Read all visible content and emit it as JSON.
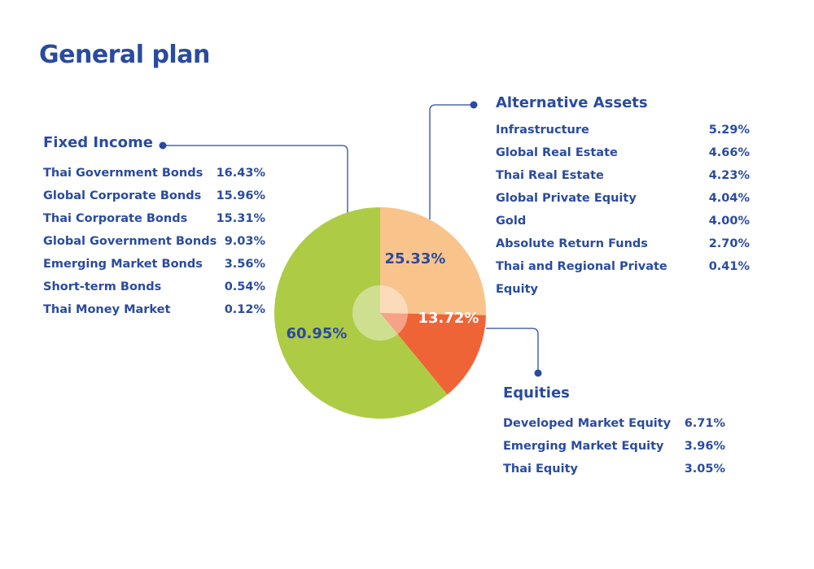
{
  "title": "General plan",
  "colors": {
    "text": "#2a4b9e",
    "fixed_income": "#aecb45",
    "alternative": "#f9c48c",
    "equities": "#ef6437",
    "center": "#ffffff"
  },
  "chart_data": {
    "type": "pie",
    "title": "General plan",
    "slices": [
      {
        "name": "Alternative Assets",
        "value": 25.33,
        "label": "25.33%",
        "color": "#f9c48c"
      },
      {
        "name": "Equities",
        "value": 13.72,
        "label": "13.72%",
        "color": "#ef6437"
      },
      {
        "name": "Fixed Income",
        "value": 60.95,
        "label": "60.95%",
        "color": "#aecb45"
      }
    ],
    "start": "top",
    "direction": "clockwise"
  },
  "groups": {
    "fixed": {
      "title": "Fixed Income",
      "items": [
        {
          "name": "Thai Government Bonds",
          "value": "16.43%"
        },
        {
          "name": "Global Corporate Bonds",
          "value": "15.96%"
        },
        {
          "name": "Thai Corporate Bonds",
          "value": "15.31%"
        },
        {
          "name": "Global Government Bonds",
          "value": "9.03%"
        },
        {
          "name": "Emerging Market Bonds",
          "value": "3.56%"
        },
        {
          "name": "Short-term Bonds",
          "value": "0.54%"
        },
        {
          "name": "Thai Money Market",
          "value": "0.12%"
        }
      ]
    },
    "alt": {
      "title": "Alternative Assets",
      "items": [
        {
          "name": "Infrastructure",
          "value": "5.29%"
        },
        {
          "name": "Global Real Estate",
          "value": "4.66%"
        },
        {
          "name": "Thai Real Estate",
          "value": "4.23%"
        },
        {
          "name": "Global Private Equity",
          "value": "4.04%"
        },
        {
          "name": "Gold",
          "value": "4.00%"
        },
        {
          "name": "Absolute Return Funds",
          "value": "2.70%"
        },
        {
          "name": "Thai and Regional Private Equity",
          "value": "0.41%"
        }
      ]
    },
    "eq": {
      "title": "Equities",
      "items": [
        {
          "name": "Developed Market Equity",
          "value": "6.71%"
        },
        {
          "name": "Emerging Market Equity",
          "value": "3.96%"
        },
        {
          "name": "Thai Equity",
          "value": "3.05%"
        }
      ]
    }
  }
}
